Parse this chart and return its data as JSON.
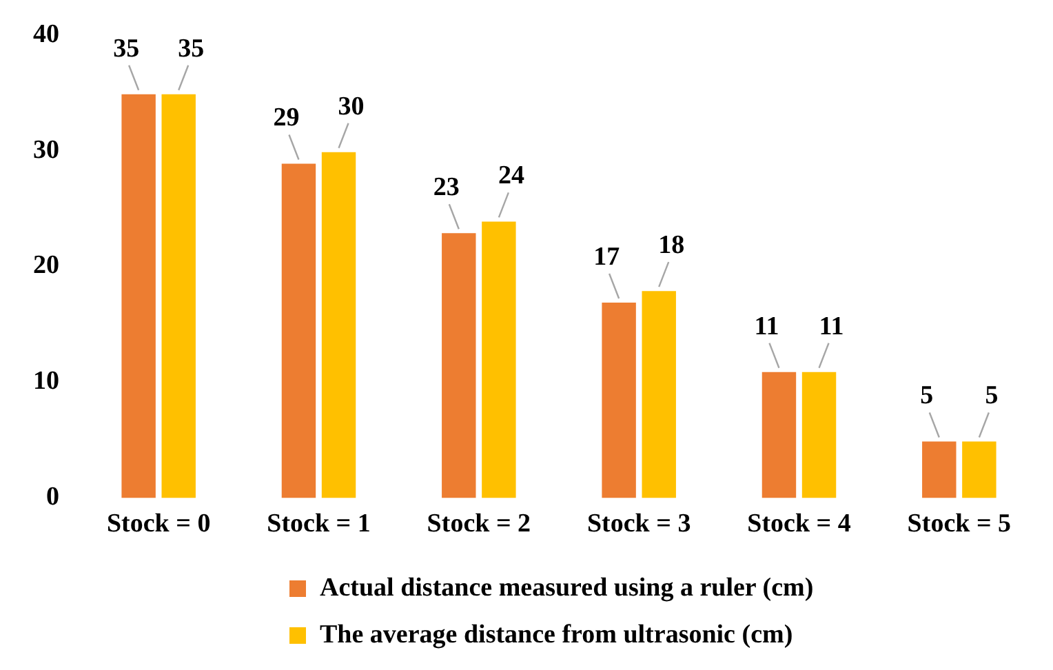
{
  "chart_data": {
    "type": "bar",
    "categories": [
      "Stock = 0",
      "Stock = 1",
      "Stock = 2",
      "Stock = 3",
      "Stock = 4",
      "Stock = 5"
    ],
    "series": [
      {
        "name": "Actual distance measured using a ruler (cm)",
        "color": "#ed7d31",
        "values": [
          35,
          29,
          23,
          17,
          11,
          5
        ]
      },
      {
        "name": "The average distance from ultrasonic (cm)",
        "color": "#ffc000",
        "values": [
          35,
          30,
          24,
          18,
          11,
          5
        ]
      }
    ],
    "ylim": [
      0,
      40
    ],
    "yticks": [
      0,
      10,
      20,
      30,
      40
    ],
    "grid": false,
    "legend": "bottom",
    "data_labels": true
  }
}
